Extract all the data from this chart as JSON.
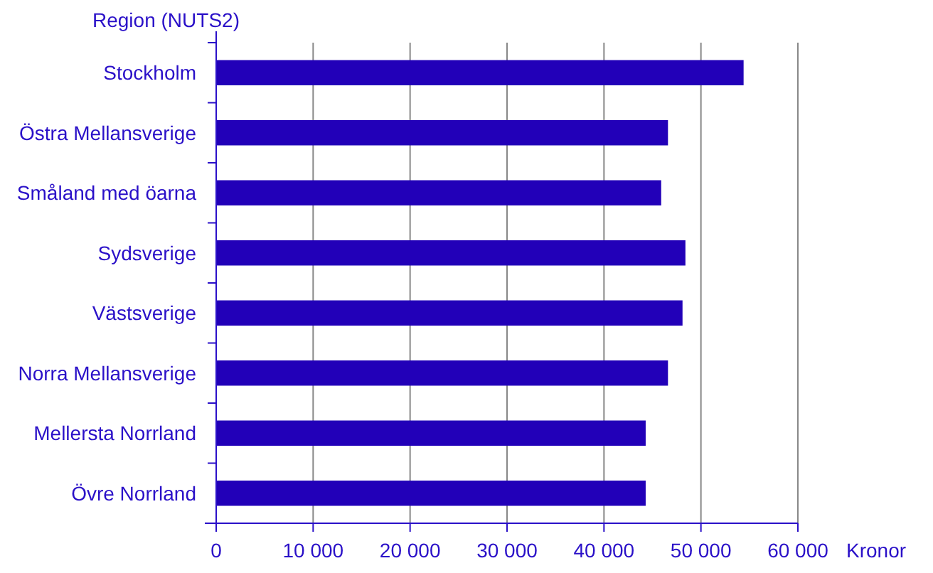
{
  "chart_data": {
    "type": "bar",
    "orientation": "horizontal",
    "ylabel": "Region (NUTS2)",
    "xlabel": "Kronor",
    "categories": [
      "Stockholm",
      "Östra Mellansverige",
      "Småland med öarna",
      "Sydsverige",
      "Västsverige",
      "Norra Mellansverige",
      "Mellersta Norrland",
      "Övre Norrland"
    ],
    "values": [
      54400,
      46600,
      45900,
      48400,
      48100,
      46600,
      44300,
      44300
    ],
    "color": "#2200b8",
    "xlim": [
      0,
      60000
    ],
    "xticks": [
      {
        "value": 0,
        "label": "0"
      },
      {
        "value": 10000,
        "label": "10 000"
      },
      {
        "value": 20000,
        "label": "20 000"
      },
      {
        "value": 30000,
        "label": "30 000"
      },
      {
        "value": 40000,
        "label": "40 000"
      },
      {
        "value": 50000,
        "label": "50 000"
      },
      {
        "value": 60000,
        "label": "60 000"
      }
    ],
    "grid": "x"
  }
}
